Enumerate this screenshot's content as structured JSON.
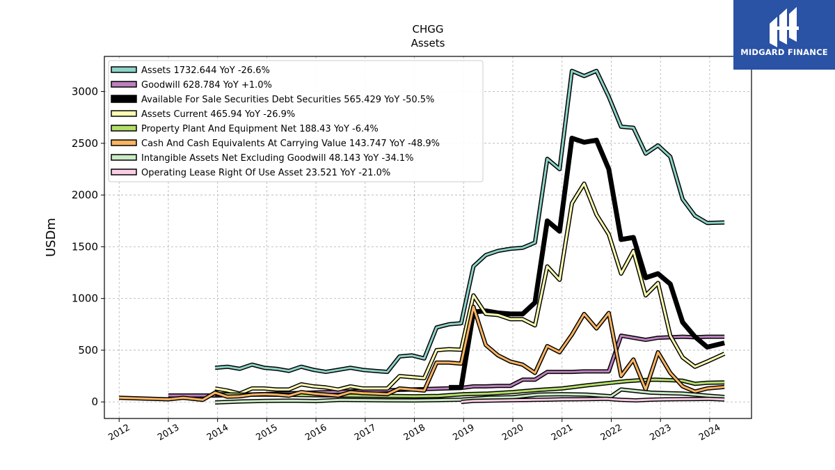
{
  "chart_data": {
    "type": "line",
    "title": "CHGG",
    "subtitle": "Assets",
    "ylabel": "USDm",
    "xlim": [
      2011.7,
      2024.85
    ],
    "ylim": [
      -160,
      3340
    ],
    "yticks": [
      0,
      500,
      1000,
      1500,
      2000,
      2500,
      3000
    ],
    "xticks": [
      "2012",
      "2013",
      "2014",
      "2015",
      "2016",
      "2017",
      "2018",
      "2019",
      "2020",
      "2021",
      "2022",
      "2023",
      "2024"
    ],
    "grid": true,
    "legend_position": "top-left",
    "series": [
      {
        "name": "Assets",
        "legend": "Assets  1732.644 YoY -26.6%",
        "color": "#8dd3c7",
        "width": 3,
        "x": [
          2013.95,
          2014.2,
          2014.45,
          2014.7,
          2014.95,
          2015.2,
          2015.45,
          2015.7,
          2015.95,
          2016.2,
          2016.45,
          2016.7,
          2016.95,
          2017.2,
          2017.45,
          2017.7,
          2017.95,
          2018.2,
          2018.45,
          2018.7,
          2018.95,
          2019.2,
          2019.45,
          2019.7,
          2019.95,
          2020.2,
          2020.45,
          2020.7,
          2020.95,
          2021.2,
          2021.45,
          2021.7,
          2021.95,
          2022.2,
          2022.45,
          2022.7,
          2022.95,
          2023.2,
          2023.45,
          2023.7,
          2023.95,
          2024.3
        ],
        "y": [
          330,
          340,
          320,
          360,
          330,
          320,
          300,
          340,
          310,
          290,
          310,
          330,
          310,
          300,
          290,
          440,
          450,
          420,
          720,
          750,
          760,
          1310,
          1420,
          1460,
          1480,
          1490,
          1540,
          2350,
          2250,
          3200,
          3150,
          3200,
          2950,
          2660,
          2650,
          2400,
          2480,
          2370,
          1960,
          1800,
          1730,
          1735
        ]
      },
      {
        "name": "Goodwill",
        "legend": "Goodwill  628.784 YoY +1.0%",
        "color": "#bc80bd",
        "width": 3,
        "x": [
          2013.0,
          2014.0,
          2018.95,
          2019.2,
          2019.45,
          2019.7,
          2019.95,
          2020.2,
          2020.45,
          2020.7,
          2020.95,
          2021.2,
          2021.45,
          2021.7,
          2021.95,
          2022.2,
          2022.45,
          2022.7,
          2022.95,
          2023.2,
          2023.45,
          2023.7,
          2023.95,
          2024.3
        ],
        "y": [
          62,
          62,
          135,
          150,
          150,
          155,
          155,
          215,
          215,
          290,
          290,
          290,
          295,
          295,
          295,
          640,
          620,
          600,
          620,
          625,
          630,
          625,
          630,
          630
        ]
      },
      {
        "name": "Available For Sale Securities Debt Securities",
        "legend": "Available For Sale Securities Debt Securities  565.429 YoY -50.5%",
        "color": "#000000",
        "width": 7,
        "x": [
          2018.7,
          2018.95,
          2019.2,
          2019.45,
          2019.7,
          2019.95,
          2020.2,
          2020.45,
          2020.7,
          2020.95,
          2021.2,
          2021.45,
          2021.7,
          2021.95,
          2022.2,
          2022.45,
          2022.7,
          2022.95,
          2023.2,
          2023.45,
          2023.7,
          2023.95,
          2024.3
        ],
        "y": [
          140,
          140,
          870,
          880,
          860,
          850,
          850,
          960,
          1750,
          1650,
          2550,
          2510,
          2530,
          2250,
          1570,
          1590,
          1200,
          1240,
          1140,
          770,
          630,
          530,
          570
        ]
      },
      {
        "name": "Assets Current",
        "legend": "Assets Current  465.94 YoY -26.9%",
        "color": "#ffffb3",
        "width": 3,
        "x": [
          2013.95,
          2014.2,
          2014.45,
          2014.7,
          2014.95,
          2015.2,
          2015.45,
          2015.7,
          2015.95,
          2016.2,
          2016.45,
          2016.7,
          2016.95,
          2017.2,
          2017.45,
          2017.7,
          2017.95,
          2018.2,
          2018.45,
          2018.7,
          2018.95,
          2019.2,
          2019.45,
          2019.7,
          2019.95,
          2020.2,
          2020.45,
          2020.7,
          2020.95,
          2021.2,
          2021.45,
          2021.7,
          2021.95,
          2022.2,
          2022.45,
          2022.7,
          2022.95,
          2023.2,
          2023.45,
          2023.7,
          2023.95,
          2024.3
        ],
        "y": [
          130,
          110,
          80,
          130,
          130,
          120,
          120,
          170,
          150,
          140,
          120,
          150,
          130,
          130,
          130,
          250,
          240,
          230,
          500,
          510,
          505,
          1030,
          850,
          840,
          800,
          800,
          740,
          1310,
          1180,
          1920,
          2110,
          1810,
          1620,
          1240,
          1460,
          1030,
          1150,
          640,
          430,
          340,
          390,
          466
        ]
      },
      {
        "name": "Property Plant And Equipment Net",
        "legend": "Property Plant And Equipment Net  188.43 YoY -6.4%",
        "color": "#b3de69",
        "width": 3,
        "x": [
          2013.95,
          2014.5,
          2015.0,
          2015.5,
          2016.0,
          2016.5,
          2017.0,
          2017.5,
          2018.0,
          2018.5,
          2019.0,
          2019.5,
          2020.0,
          2020.5,
          2021.0,
          2021.5,
          2022.0,
          2022.3,
          2022.6,
          2022.9,
          2023.2,
          2023.45,
          2023.7,
          2023.95,
          2024.3
        ],
        "y": [
          75,
          70,
          70,
          68,
          65,
          62,
          60,
          58,
          55,
          58,
          75,
          80,
          95,
          115,
          130,
          160,
          185,
          200,
          210,
          215,
          210,
          205,
          175,
          185,
          188
        ]
      },
      {
        "name": "Cash And Cash Equivalents At Carrying Value",
        "legend": "Cash And Cash Equivalents At Carrying Value  143.747 YoY -48.9%",
        "color": "#fdb462",
        "width": 3,
        "x": [
          2012.0,
          2013.0,
          2013.3,
          2013.7,
          2013.95,
          2014.2,
          2014.45,
          2014.7,
          2014.95,
          2015.2,
          2015.45,
          2015.7,
          2015.95,
          2016.2,
          2016.45,
          2016.7,
          2016.95,
          2017.2,
          2017.45,
          2017.7,
          2017.95,
          2018.2,
          2018.45,
          2018.7,
          2018.95,
          2019.2,
          2019.45,
          2019.7,
          2019.95,
          2020.2,
          2020.45,
          2020.7,
          2020.95,
          2021.2,
          2021.45,
          2021.7,
          2021.95,
          2022.2,
          2022.45,
          2022.7,
          2022.95,
          2023.2,
          2023.45,
          2023.7,
          2023.95,
          2024.3
        ],
        "y": [
          40,
          25,
          40,
          20,
          90,
          50,
          55,
          70,
          75,
          70,
          60,
          95,
          80,
          70,
          60,
          95,
          85,
          80,
          75,
          130,
          120,
          110,
          380,
          380,
          370,
          920,
          550,
          450,
          390,
          360,
          280,
          540,
          480,
          650,
          850,
          710,
          860,
          250,
          410,
          120,
          480,
          280,
          150,
          100,
          130,
          144
        ]
      },
      {
        "name": "Intangible Assets Net Excluding Goodwill",
        "legend": "Intangible Assets Net Excluding Goodwill  48.143 YoY -34.1%",
        "color": "#ccebc5",
        "width": 3,
        "x": [
          2013.95,
          2014.5,
          2015.0,
          2015.5,
          2016.0,
          2016.5,
          2017.0,
          2017.5,
          2018.0,
          2018.5,
          2018.95,
          2019.5,
          2020.0,
          2020.5,
          2021.0,
          2021.5,
          2022.0,
          2022.2,
          2022.5,
          2022.8,
          2023.1,
          2023.45,
          2023.7,
          2023.95,
          2024.3
        ],
        "y": [
          -5,
          5,
          10,
          12,
          8,
          20,
          18,
          15,
          14,
          18,
          22,
          40,
          45,
          70,
          75,
          70,
          55,
          120,
          105,
          90,
          85,
          80,
          70,
          60,
          48
        ]
      },
      {
        "name": "Operating Lease Right Of Use Asset",
        "legend": "Operating Lease Right Of Use Asset  23.521 YoY -21.0%",
        "color": "#fccde5",
        "width": 3,
        "x": [
          2018.95,
          2019.2,
          2019.5,
          2019.8,
          2020.1,
          2020.4,
          2020.7,
          2021.0,
          2021.3,
          2021.6,
          2021.9,
          2022.2,
          2022.5,
          2022.8,
          2023.1,
          2023.4,
          2023.7,
          2024.0,
          2024.3
        ],
        "y": [
          0,
          10,
          12,
          15,
          18,
          20,
          22,
          25,
          26,
          28,
          30,
          20,
          15,
          22,
          25,
          27,
          28,
          29,
          24
        ]
      }
    ]
  },
  "logo": {
    "text": "MIDGARD FINANCE"
  }
}
